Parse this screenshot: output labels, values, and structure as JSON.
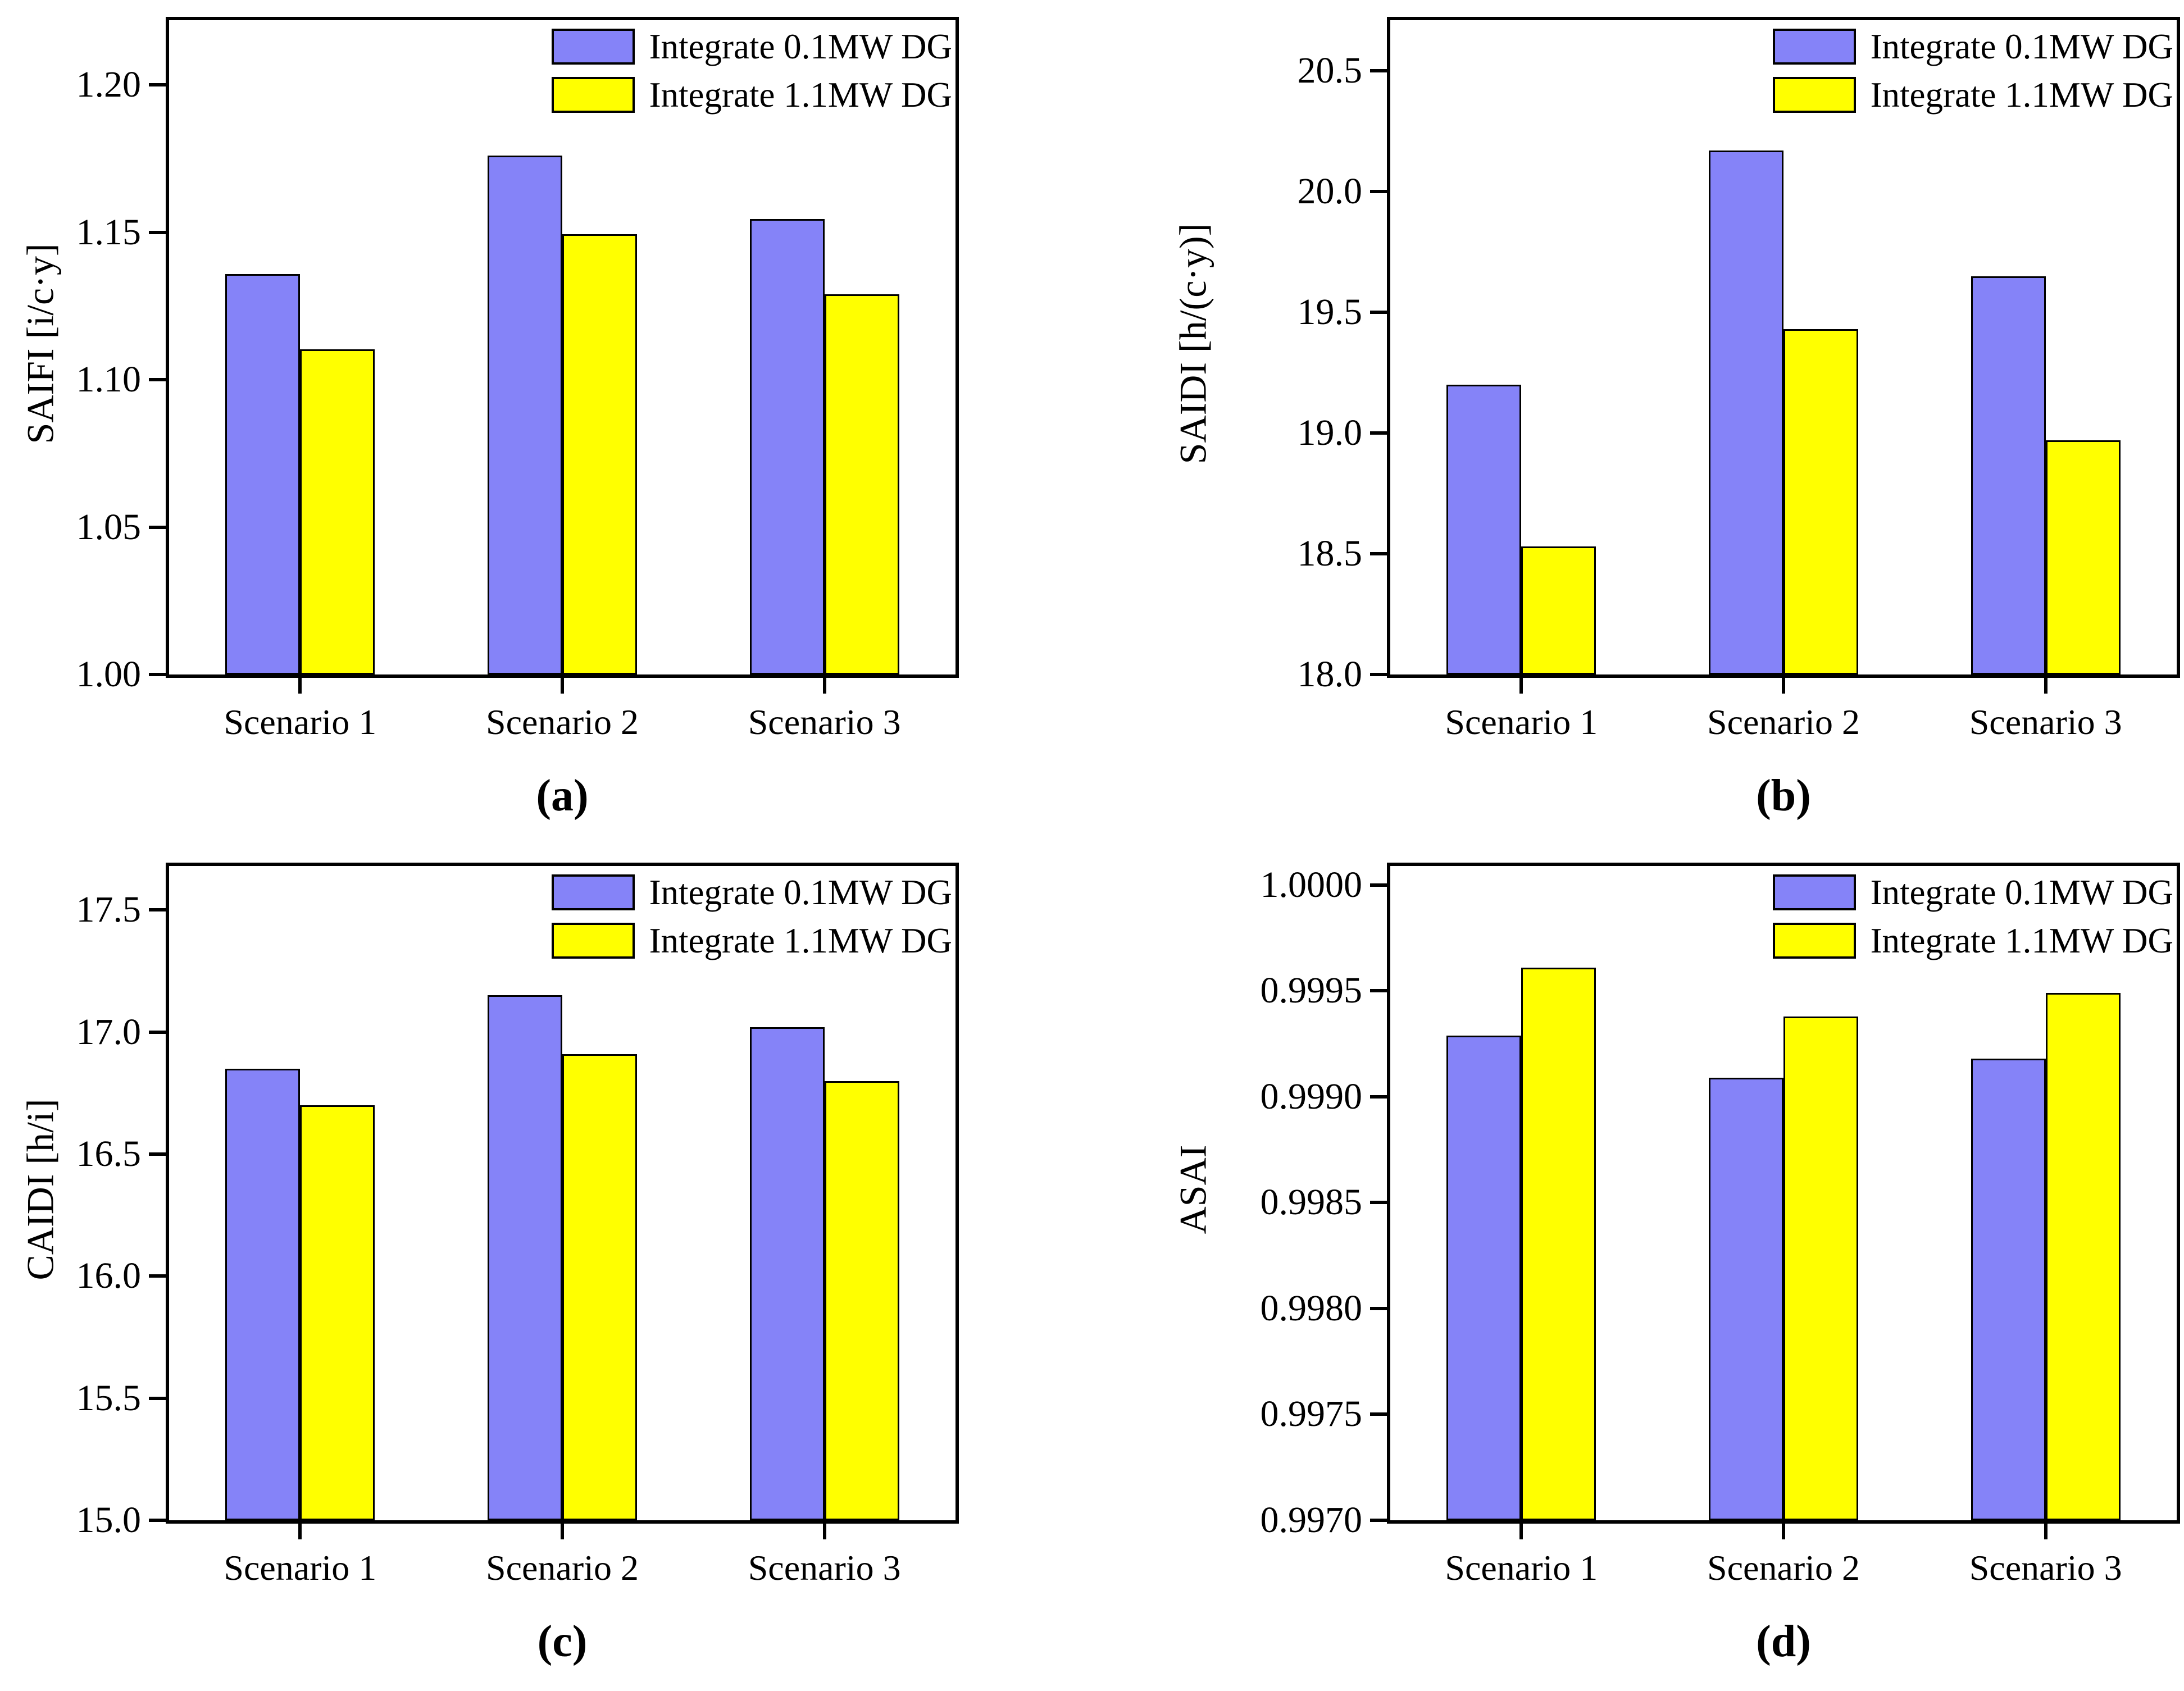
{
  "figure": {
    "background": "#ffffff",
    "outline_color": "#000000",
    "series1_color": "#8583f8",
    "series2_color": "#ffff00",
    "legend_labels": [
      "Integrate 0.1MW DG",
      "Integrate 1.1MW DG"
    ],
    "legend_position": "top-right"
  },
  "chart_data": [
    {
      "id": "a",
      "type": "bar",
      "caption": "(a)",
      "ylabel": "SAIFI [i/c·y]",
      "xlabel": "",
      "grid": false,
      "legend_position": "top-right",
      "categories": [
        "Scenario 1",
        "Scenario 2",
        "Scenario 3"
      ],
      "series": [
        {
          "name": "Integrate 0.1MW DG",
          "color": "#8583f8",
          "values": [
            1.1358,
            1.1761,
            1.1545
          ]
        },
        {
          "name": "Integrate 1.1MW DG",
          "color": "#ffff00",
          "values": [
            1.1104,
            1.1494,
            1.1291
          ]
        }
      ],
      "ylim": [
        1.0,
        1.222
      ],
      "yticks": [
        1.0,
        1.05,
        1.1,
        1.15,
        1.2
      ],
      "ytick_labels": [
        "1.00",
        "1.05",
        "1.10",
        "1.15",
        "1.20"
      ]
    },
    {
      "id": "b",
      "type": "bar",
      "caption": "(b)",
      "ylabel": "SAIDI [h/(c·y)]",
      "xlabel": "",
      "grid": false,
      "legend_position": "top-right",
      "categories": [
        "Scenario 1",
        "Scenario 2",
        "Scenario 3"
      ],
      "series": [
        {
          "name": "Integrate 0.1MW DG",
          "color": "#8583f8",
          "values": [
            19.2,
            20.17,
            19.65
          ]
        },
        {
          "name": "Integrate 1.1MW DG",
          "color": "#ffff00",
          "values": [
            18.53,
            19.43,
            18.97
          ]
        }
      ],
      "ylim": [
        18.0,
        20.71
      ],
      "yticks": [
        18.0,
        18.5,
        19.0,
        19.5,
        20.0,
        20.5
      ],
      "ytick_labels": [
        "18.0",
        "18.5",
        "19.0",
        "19.5",
        "20.0",
        "20.5"
      ]
    },
    {
      "id": "c",
      "type": "bar",
      "caption": "(c)",
      "ylabel": "CAIDI [h/i]",
      "xlabel": "",
      "grid": false,
      "legend_position": "top-right",
      "categories": [
        "Scenario 1",
        "Scenario 2",
        "Scenario 3"
      ],
      "series": [
        {
          "name": "Integrate 0.1MW DG",
          "color": "#8583f8",
          "values": [
            16.85,
            17.15,
            17.02
          ]
        },
        {
          "name": "Integrate 1.1MW DG",
          "color": "#ffff00",
          "values": [
            16.7,
            16.91,
            16.8
          ]
        }
      ],
      "ylim": [
        15.0,
        17.68
      ],
      "yticks": [
        15.0,
        15.5,
        16.0,
        16.5,
        17.0,
        17.5
      ],
      "ytick_labels": [
        "15.0",
        "15.5",
        "16.0",
        "16.5",
        "17.0",
        "17.5"
      ]
    },
    {
      "id": "d",
      "type": "bar",
      "caption": "(d)",
      "ylabel": "ASAI",
      "xlabel": "",
      "grid": false,
      "legend_position": "top-right",
      "categories": [
        "Scenario 1",
        "Scenario 2",
        "Scenario 3"
      ],
      "series": [
        {
          "name": "Integrate 0.1MW DG",
          "color": "#8583f8",
          "values": [
            0.99929,
            0.99909,
            0.99918
          ]
        },
        {
          "name": "Integrate 1.1MW DG",
          "color": "#ffff00",
          "values": [
            0.99961,
            0.99938,
            0.99949
          ]
        }
      ],
      "ylim": [
        0.997,
        1.00009
      ],
      "yticks": [
        0.997,
        0.9975,
        0.998,
        0.9985,
        0.999,
        0.9995,
        1.0
      ],
      "ytick_labels": [
        "0.9970",
        "0.9975",
        "0.9980",
        "0.9985",
        "0.9990",
        "0.9995",
        "1.0000"
      ]
    }
  ]
}
